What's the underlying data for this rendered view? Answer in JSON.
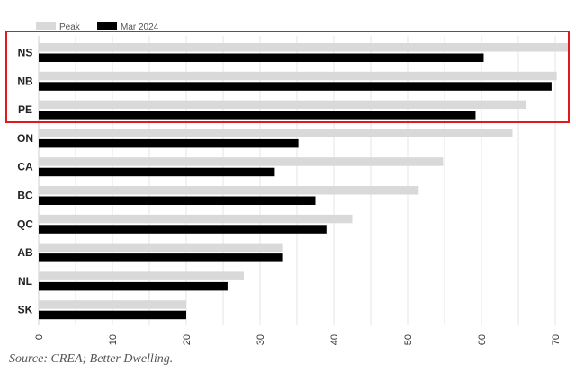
{
  "chart_data": {
    "type": "bar",
    "orientation": "horizontal",
    "categories": [
      "NS",
      "NB",
      "PE",
      "ON",
      "CA",
      "BC",
      "QC",
      "AB",
      "NL",
      "SK"
    ],
    "series": [
      {
        "name": "Peak",
        "color": "#d9d9d9",
        "values": [
          72,
          70.2,
          66,
          64.2,
          54.8,
          51.5,
          42.5,
          33,
          27.8,
          20
        ]
      },
      {
        "name": "Mar 2024",
        "color": "#000000",
        "values": [
          60.3,
          69.5,
          59.2,
          35.2,
          32,
          37.5,
          39,
          33,
          25.6,
          20
        ]
      }
    ],
    "xlim": [
      0,
      70
    ],
    "xticks": [
      "0",
      "10",
      "20",
      "30",
      "40",
      "50",
      "60",
      "70"
    ],
    "grid": "vertical",
    "legend": "top-left",
    "highlight": {
      "categories": [
        "NS",
        "NB",
        "PE"
      ],
      "color": "#e0191f"
    },
    "source": "Source: CREA; Better Dwelling."
  }
}
